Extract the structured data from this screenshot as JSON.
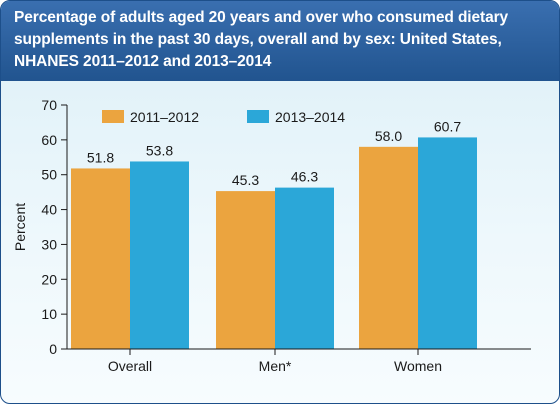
{
  "header": {
    "title": "Percentage of adults aged 20 years and over who consumed dietary supplements in the past 30 days, overall and by sex: United States, NHANES 2011–2012 and 2013–2014"
  },
  "colors": {
    "header_bg": "#2a5d9c",
    "plot_bg": "#dceff7",
    "series_2011": "#eba43f",
    "series_2013": "#2ba7d8"
  },
  "chart_data": {
    "type": "bar",
    "title": "Percentage of adults aged 20 years and over who consumed dietary supplements in the past 30 days, overall and by sex: United States, NHANES 2011–2012 and 2013–2014",
    "xlabel": "",
    "ylabel": "Percent",
    "categories": [
      "Overall",
      "Men*",
      "Women"
    ],
    "series": [
      {
        "name": "2011–2012",
        "color": "#eba43f",
        "values": [
          51.8,
          45.3,
          58.0
        ],
        "labels": [
          "51.8",
          "45.3",
          "58.0"
        ]
      },
      {
        "name": "2013–2014",
        "color": "#2ba7d8",
        "values": [
          53.8,
          46.3,
          60.7
        ],
        "labels": [
          "53.8",
          "46.3",
          "60.7"
        ]
      }
    ],
    "ylim": [
      0,
      70
    ],
    "yticks": [
      0,
      10,
      20,
      30,
      40,
      50,
      60,
      70
    ],
    "grid": false,
    "legend": "top-left"
  }
}
